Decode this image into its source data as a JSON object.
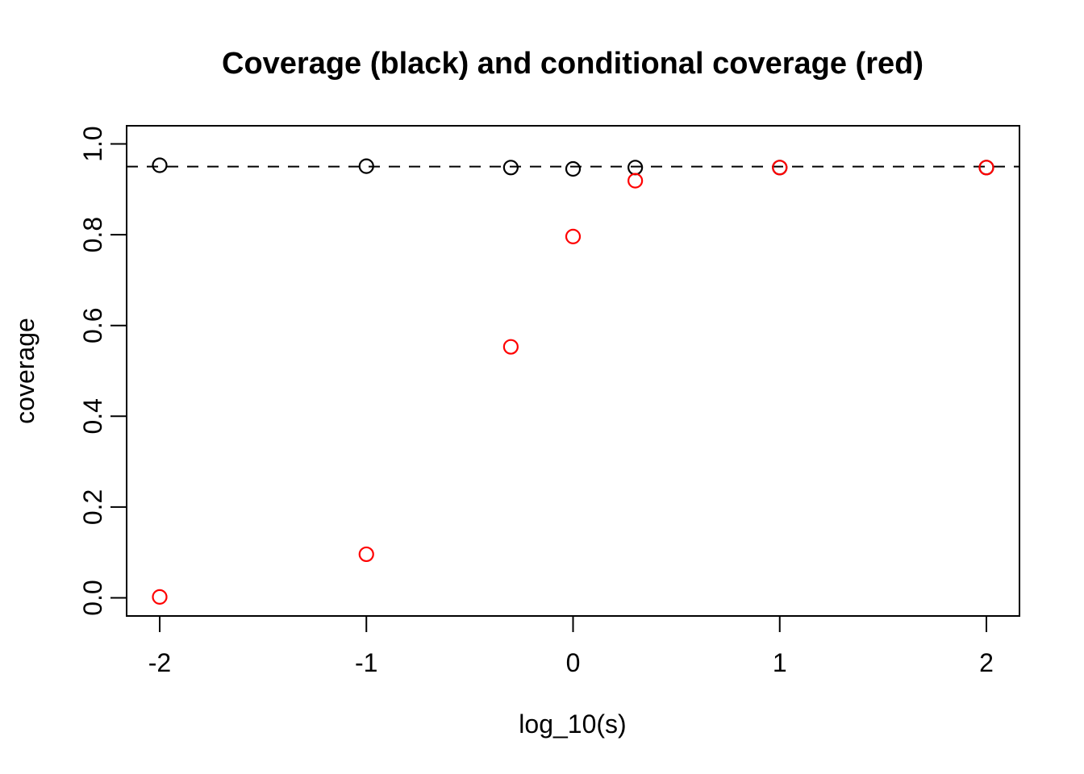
{
  "page": {
    "background_color": "#FFFFFF"
  },
  "chart_data": {
    "type": "scatter",
    "title": "Coverage (black) and conditional coverage (red)",
    "xlabel": "log_10(s)",
    "ylabel": "coverage",
    "xlim": [
      -2,
      2
    ],
    "ylim": [
      0,
      1
    ],
    "x_range_shown": [
      -2.16,
      2.16
    ],
    "y_range_shown": [
      -0.04,
      1.04
    ],
    "grid": false,
    "x_ticks": {
      "values": [
        -2,
        -1,
        0,
        1,
        2
      ],
      "labels": [
        "-2",
        "-1",
        "0",
        "1",
        "2"
      ]
    },
    "y_ticks": {
      "values": [
        0,
        0.2,
        0.4,
        0.6,
        0.8,
        1.0
      ],
      "labels": [
        "0.0",
        "0.2",
        "0.4",
        "0.6",
        "0.8",
        "1.0"
      ]
    },
    "reference_line": {
      "y": 0.95,
      "style": "dashed",
      "color": "#000000"
    },
    "marker": {
      "shape": "open-circle",
      "radius_px": 8.5,
      "stroke_px": 2.2
    },
    "x": [
      -2,
      -1,
      -0.301,
      0,
      0.301,
      1,
      2
    ],
    "series": [
      {
        "name": "coverage",
        "color": "#000000",
        "values": [
          0.953,
          0.951,
          0.948,
          0.945,
          0.948,
          0.948,
          0.948
        ]
      },
      {
        "name": "conditional coverage",
        "color": "#FF0000",
        "values": [
          0.002,
          0.096,
          0.553,
          0.796,
          0.919,
          0.948,
          0.948
        ]
      }
    ],
    "axis_color": "#000000"
  }
}
